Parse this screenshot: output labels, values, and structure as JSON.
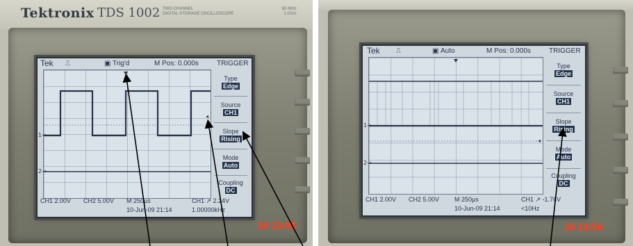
{
  "left_photo": {
    "brand": "Tektronix",
    "model": "TDS 1002",
    "model_small": "TWO CHANNEL\nDIGITAL STORAGE OSCILLOSCOPE",
    "spec_small": "60 MHz\n1 GS/s",
    "screen": {
      "tek_label": "Tek",
      "trig_status": "Trig'd",
      "m_pos": "M Pos: 0.000s",
      "menu_title": "TRIGGER",
      "menu": [
        {
          "label": "Type",
          "value": "Edge"
        },
        {
          "label": "Source",
          "value": "CH1"
        },
        {
          "label": "Slope",
          "value": "Rising"
        },
        {
          "label": "Mode",
          "value": "Auto"
        },
        {
          "label": "Coupling",
          "value": "DC"
        }
      ],
      "ch1_scale": "CH1  2.00V",
      "ch2_scale": "CH2  5.00V",
      "timebase": "M 250µs",
      "trigger_level": "CH1 ↗ 2.24V",
      "date_time": "10-Jun-09 21:14",
      "frequency": "1.00000kHz"
    },
    "camera_stamp": "10  13:55"
  },
  "right_photo": {
    "screen": {
      "tek_label": "Tek",
      "trig_status": "Auto",
      "m_pos": "M Pos: 0.000s",
      "menu_title": "TRIGGER",
      "menu": [
        {
          "label": "Type",
          "value": "Edge"
        },
        {
          "label": "Source",
          "value": "CH1"
        },
        {
          "label": "Slope",
          "value": "Rising"
        },
        {
          "label": "Mode",
          "value": "Auto"
        },
        {
          "label": "Coupling",
          "value": "DC"
        }
      ],
      "ch1_scale": "CH1  2.00V",
      "ch2_scale": "CH2  5.00V",
      "timebase": "M 250µs",
      "trigger_level": "CH1 ↗ -1.76V",
      "date_time": "10-Jun-09 21:14",
      "frequency": "<10Hz"
    },
    "camera_stamp": "10  13:54"
  },
  "colors": {
    "screen_bg": "#dbe3ea",
    "trace": "#2a3448",
    "date_stamp": "#ff3a1a",
    "annotation_arrow": "#000000"
  }
}
